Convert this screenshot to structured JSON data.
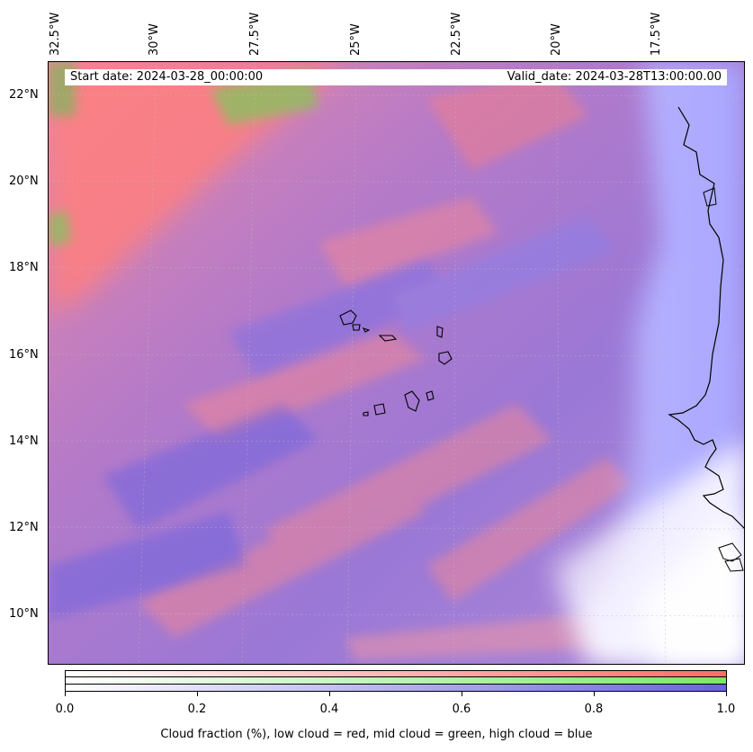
{
  "map": {
    "start_date": "Start date: 2024-03-28_00:00:00",
    "valid_date": "Valid_date: 2024-03-28T13:00:00.00",
    "lon_labels": [
      "32.5°W",
      "30°W",
      "27.5°W",
      "25°W",
      "22.5°W",
      "20°W",
      "17.5°W"
    ],
    "lat_labels": [
      "22°N",
      "20°N",
      "18°N",
      "16°N",
      "14°N",
      "12°N",
      "10°N"
    ],
    "colors": {
      "low_cloud": "#ff6b6b",
      "mid_cloud": "#7ae86a",
      "high_cloud": "#6a62e0",
      "coastline": "#000000"
    }
  },
  "colorbar": {
    "ticks": [
      "0.0",
      "0.2",
      "0.4",
      "0.6",
      "0.8",
      "1.0"
    ],
    "label": "Cloud fraction (%), low cloud = red, mid cloud = green, high cloud = blue"
  }
}
